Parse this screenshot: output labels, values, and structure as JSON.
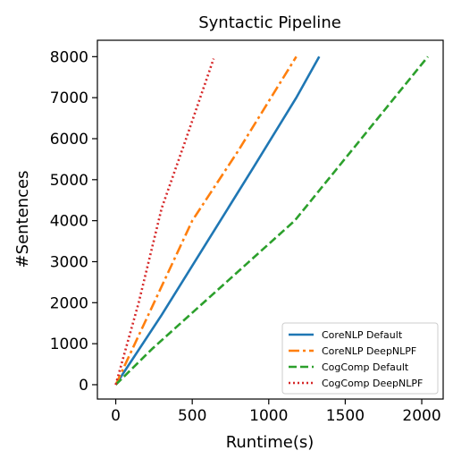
{
  "chart_data": {
    "type": "line",
    "title": "Syntactic Pipeline",
    "xlabel": "Runtime(s)",
    "ylabel": "#Sentences",
    "xlim": [
      -120,
      2140
    ],
    "ylim": [
      -350,
      8400
    ],
    "xticks": [
      0,
      500,
      1000,
      1500,
      2000
    ],
    "yticks": [
      0,
      1000,
      2000,
      3000,
      4000,
      5000,
      6000,
      7000,
      8000
    ],
    "grid": false,
    "legend_position": "lower-right",
    "series": [
      {
        "name": "CoreNLP Default",
        "color": "#1f77b4",
        "dash": "solid",
        "x": [
          0,
          300,
          600,
          900,
          1180,
          1330
        ],
        "y": [
          0,
          1700,
          3500,
          5300,
          7000,
          8000
        ]
      },
      {
        "name": "CoreNLP DeepNLPF",
        "color": "#ff7f0e",
        "dash": "dashdot",
        "x": [
          0,
          250,
          500,
          800,
          1180
        ],
        "y": [
          0,
          2000,
          4000,
          5700,
          8000
        ]
      },
      {
        "name": "CogComp Default",
        "color": "#2ca02c",
        "dash": "dashed",
        "x": [
          0,
          240,
          1170,
          2040
        ],
        "y": [
          0,
          880,
          4000,
          8000
        ]
      },
      {
        "name": "CogComp DeepNLPF",
        "color": "#d62728",
        "dash": "dotted",
        "x": [
          0,
          150,
          300,
          460,
          640
        ],
        "y": [
          0,
          2000,
          4300,
          6000,
          7950
        ]
      }
    ]
  }
}
